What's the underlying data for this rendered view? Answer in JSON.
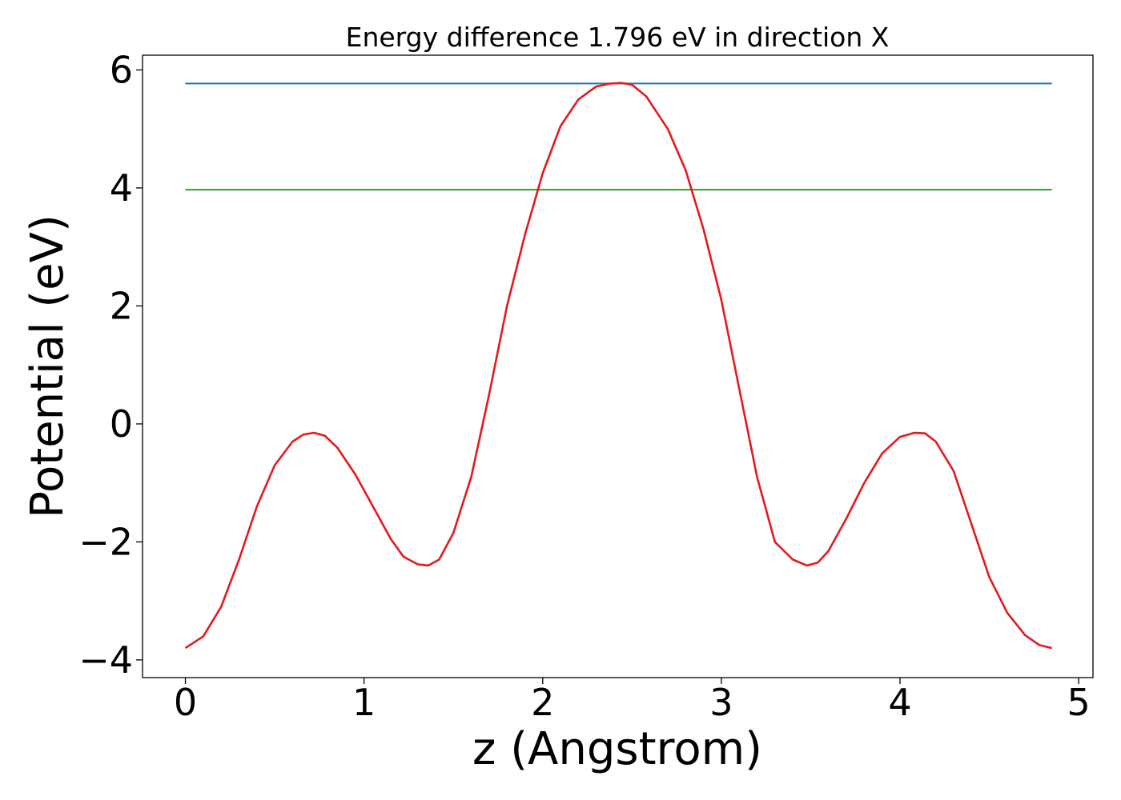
{
  "chart_data": {
    "type": "line",
    "title": "Energy difference 1.796 eV in direction X",
    "xlabel": "z (Angstrom)",
    "ylabel": "Potential (eV)",
    "xlim": [
      -0.24,
      5.08
    ],
    "ylim": [
      -4.3,
      6.25
    ],
    "xticks": [
      0,
      1,
      2,
      3,
      4,
      5
    ],
    "xtick_labels": [
      "0",
      "1",
      "2",
      "3",
      "4",
      "5"
    ],
    "yticks": [
      -4,
      -2,
      0,
      2,
      4,
      6
    ],
    "ytick_labels": [
      "−4",
      "−2",
      "0",
      "2",
      "4",
      "6"
    ],
    "grid": false,
    "series": [
      {
        "color": "#1f77b4",
        "x": [
          0,
          4.85
        ],
        "y": [
          5.77,
          5.77
        ]
      },
      {
        "color": "#2ca02c",
        "x": [
          0,
          4.85
        ],
        "y": [
          3.97,
          3.97
        ]
      },
      {
        "color": "#e31a1c",
        "x": [
          0.0,
          0.1,
          0.2,
          0.3,
          0.4,
          0.5,
          0.6,
          0.66,
          0.72,
          0.78,
          0.85,
          0.95,
          1.05,
          1.15,
          1.22,
          1.3,
          1.36,
          1.42,
          1.5,
          1.6,
          1.7,
          1.8,
          1.9,
          2.0,
          2.1,
          2.2,
          2.3,
          2.38,
          2.44,
          2.5,
          2.58,
          2.7,
          2.8,
          2.9,
          3.0,
          3.1,
          3.2,
          3.3,
          3.4,
          3.48,
          3.54,
          3.6,
          3.7,
          3.8,
          3.9,
          4.0,
          4.08,
          4.14,
          4.2,
          4.3,
          4.4,
          4.5,
          4.6,
          4.7,
          4.78,
          4.85
        ],
        "y": [
          -3.8,
          -3.6,
          -3.1,
          -2.3,
          -1.4,
          -0.7,
          -0.3,
          -0.18,
          -0.15,
          -0.2,
          -0.4,
          -0.85,
          -1.4,
          -1.95,
          -2.25,
          -2.38,
          -2.4,
          -2.3,
          -1.85,
          -0.9,
          0.5,
          2.0,
          3.2,
          4.25,
          5.05,
          5.5,
          5.72,
          5.77,
          5.78,
          5.75,
          5.55,
          5.0,
          4.3,
          3.3,
          2.1,
          0.6,
          -0.9,
          -2.0,
          -2.3,
          -2.4,
          -2.35,
          -2.15,
          -1.6,
          -1.0,
          -0.5,
          -0.22,
          -0.15,
          -0.16,
          -0.3,
          -0.8,
          -1.7,
          -2.6,
          -3.2,
          -3.58,
          -3.75,
          -3.8
        ]
      }
    ]
  }
}
